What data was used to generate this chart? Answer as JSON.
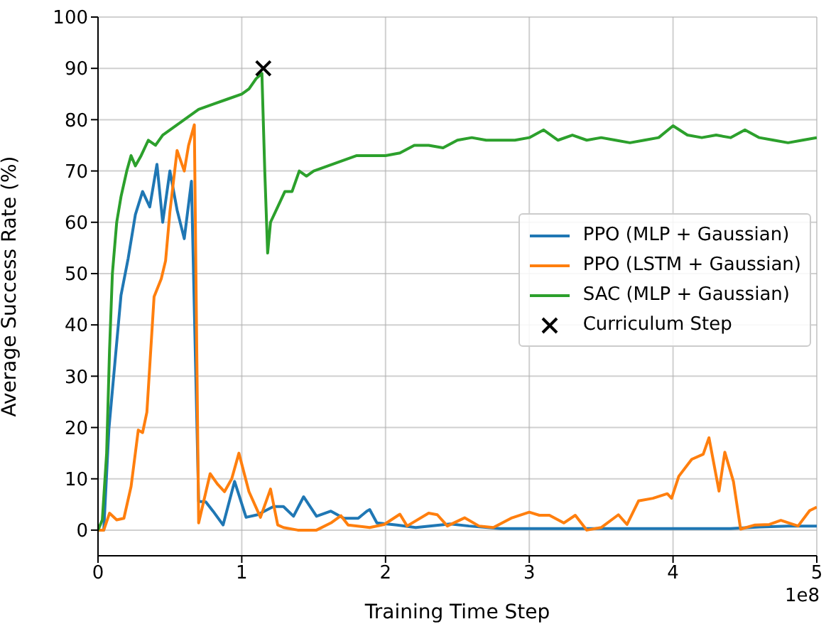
{
  "chart_data": {
    "type": "line",
    "xlabel": "Training Time Step",
    "ylabel": "Average Success Rate (%)",
    "xlim": [
      0,
      5
    ],
    "xticks": [
      0,
      1,
      2,
      3,
      4,
      5
    ],
    "ylim": [
      -5,
      100
    ],
    "yticks": [
      0,
      10,
      20,
      30,
      40,
      50,
      60,
      70,
      80,
      90,
      100
    ],
    "grid": true,
    "legend": "center right",
    "annotations": [
      "1e8"
    ],
    "series": [
      {
        "name": "PPO (MLP + Gaussian)",
        "color": "#1f77b4",
        "x": [
          0,
          0.04,
          0.076,
          0.16,
          0.21,
          0.26,
          0.31,
          0.36,
          0.41,
          0.45,
          0.5,
          0.55,
          0.6,
          0.65,
          0.7,
          0.75,
          0.8,
          0.87,
          0.95,
          1.03,
          1.11,
          1.22,
          1.29,
          1.36,
          1.43,
          1.52,
          1.62,
          1.71,
          1.81,
          1.87,
          1.89,
          1.94,
          2.08,
          2.21,
          2.45,
          2.58,
          2.8,
          3.2,
          3.6,
          4.0,
          4.4,
          4.6,
          4.8,
          5.0
        ],
        "values": [
          0,
          0,
          19.8,
          45.8,
          53,
          61.5,
          66,
          63,
          71.3,
          60,
          70,
          62.4,
          56.8,
          68,
          5.6,
          5.5,
          3.7,
          1,
          9.5,
          2.5,
          3,
          4.6,
          4.6,
          2.7,
          6.5,
          2.7,
          3.7,
          2.3,
          2.3,
          3.7,
          4,
          1.4,
          1,
          0.5,
          1.2,
          0.8,
          0.3,
          0.3,
          0.3,
          0.3,
          0.3,
          0.6,
          0.8,
          0.8
        ]
      },
      {
        "name": "PPO (LSTM + Gaussian)",
        "color": "#ff7f0e",
        "x": [
          0,
          0.04,
          0.08,
          0.13,
          0.18,
          0.23,
          0.28,
          0.31,
          0.34,
          0.39,
          0.44,
          0.47,
          0.5,
          0.55,
          0.6,
          0.63,
          0.67,
          0.7,
          0.78,
          0.83,
          0.88,
          0.93,
          0.98,
          1.05,
          1.13,
          1.2,
          1.25,
          1.29,
          1.39,
          1.52,
          1.62,
          1.69,
          1.74,
          1.89,
          1.99,
          2.1,
          2.15,
          2.3,
          2.36,
          2.43,
          2.55,
          2.65,
          2.75,
          2.88,
          3.0,
          3.07,
          3.14,
          3.24,
          3.32,
          3.4,
          3.5,
          3.62,
          3.68,
          3.76,
          3.86,
          3.96,
          3.99,
          4.04,
          4.13,
          4.21,
          4.25,
          4.32,
          4.36,
          4.42,
          4.47,
          4.57,
          4.67,
          4.75,
          4.87,
          4.95,
          5.0
        ],
        "values": [
          0,
          0,
          3.3,
          2,
          2.3,
          8.5,
          19.5,
          19,
          23,
          45.5,
          49,
          52.5,
          62,
          74,
          70,
          75,
          79,
          1.4,
          11,
          9,
          7.5,
          10,
          15,
          7.5,
          2.5,
          8,
          1,
          0.5,
          0,
          0,
          1.4,
          2.8,
          1,
          0.5,
          1.1,
          3.1,
          0.8,
          3.3,
          3,
          0.8,
          2.4,
          0.8,
          0.5,
          2.4,
          3.5,
          2.9,
          2.9,
          1.4,
          2.9,
          0,
          0.5,
          3,
          1.1,
          5.7,
          6.2,
          7.1,
          6.2,
          10.5,
          13.8,
          14.8,
          18,
          7.6,
          15.2,
          9.5,
          0.2,
          1,
          1.1,
          1.9,
          0.8,
          3.8,
          4.5
        ]
      },
      {
        "name": "SAC (MLP + Gaussian)",
        "color": "#2ca02c",
        "x": [
          0,
          0.03,
          0.06,
          0.08,
          0.1,
          0.13,
          0.16,
          0.2,
          0.23,
          0.26,
          0.3,
          0.35,
          0.4,
          0.45,
          0.5,
          0.55,
          0.6,
          0.7,
          0.8,
          0.9,
          1.0,
          1.05,
          1.1,
          1.14,
          1.16,
          1.18,
          1.2,
          1.25,
          1.3,
          1.35,
          1.4,
          1.45,
          1.5,
          1.6,
          1.7,
          1.8,
          1.9,
          2.0,
          2.1,
          2.2,
          2.3,
          2.4,
          2.5,
          2.6,
          2.7,
          2.8,
          2.9,
          3.0,
          3.1,
          3.2,
          3.3,
          3.4,
          3.5,
          3.6,
          3.7,
          3.8,
          3.9,
          4.0,
          4.1,
          4.2,
          4.3,
          4.4,
          4.5,
          4.6,
          4.7,
          4.8,
          4.9,
          5.0
        ],
        "values": [
          0,
          2,
          15,
          35,
          50,
          60,
          65,
          70,
          73,
          71,
          73,
          76,
          75,
          77,
          78,
          79,
          80,
          82,
          83,
          84,
          85,
          86,
          88,
          89,
          70,
          54,
          60,
          63,
          66,
          66,
          70,
          69,
          70,
          71,
          72,
          73,
          73,
          73,
          73.5,
          75,
          75,
          74.5,
          76,
          76.5,
          76,
          76,
          76,
          76.5,
          78,
          76,
          77,
          76,
          76.5,
          76,
          75.5,
          76,
          76.5,
          78.8,
          77,
          76.5,
          77,
          76.5,
          78,
          76.5,
          76,
          75.5,
          76,
          76.5
        ]
      },
      {
        "name": "Curriculum Step",
        "type": "scatter",
        "marker": "cross",
        "color": "#000000",
        "x": [
          1.15
        ],
        "values": [
          90
        ]
      }
    ]
  }
}
